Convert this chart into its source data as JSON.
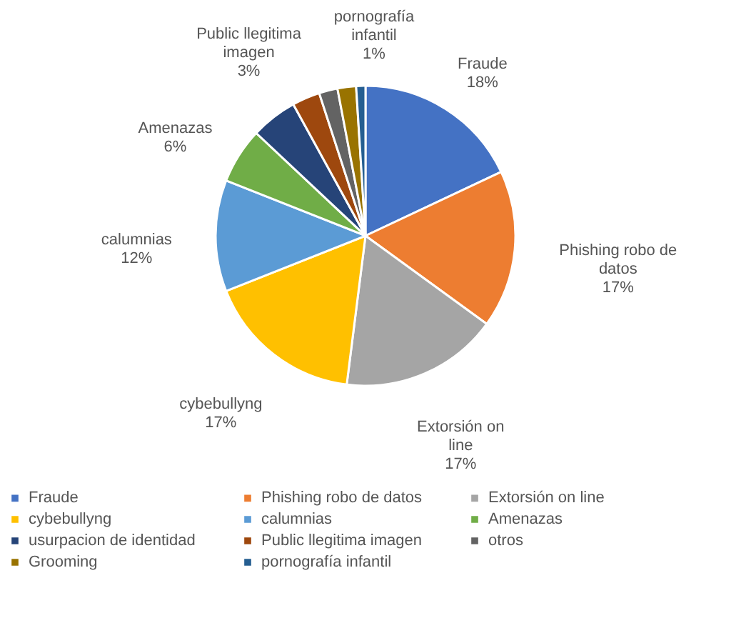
{
  "chart_data": {
    "type": "pie",
    "categories": [
      "Fraude",
      "Phishing robo de datos",
      "Extorsión on line",
      "cybebullyng",
      "calumnias",
      "Amenazas",
      "usurpacion de identidad",
      "Public llegitima imagen",
      "otros",
      "Grooming",
      "pornografía infantil"
    ],
    "values": [
      18,
      17,
      17,
      17,
      12,
      6,
      5,
      3,
      2,
      2,
      1
    ],
    "colors": [
      "#4472c4",
      "#ed7d31",
      "#a5a5a5",
      "#ffc000",
      "#5b9bd5",
      "#70ad47",
      "#264478",
      "#9e480e",
      "#636363",
      "#997300",
      "#255e91"
    ],
    "value_labels": [
      "18%",
      "17%",
      "17%",
      "17%",
      "12%",
      "6%",
      null,
      "3%",
      null,
      null,
      "1%"
    ],
    "legend": "bottom"
  }
}
